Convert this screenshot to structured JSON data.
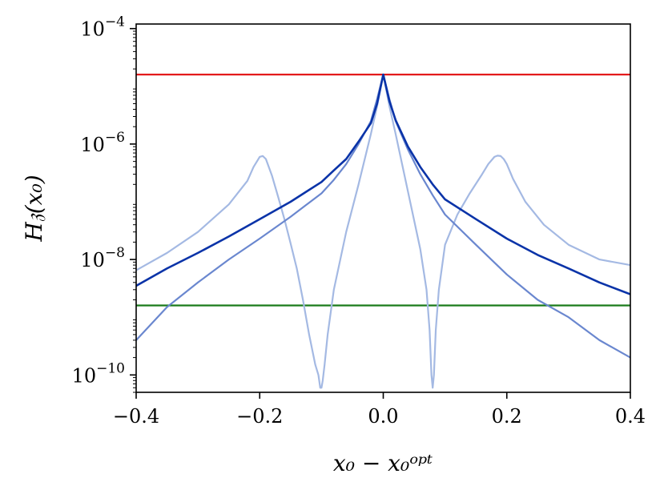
{
  "chart_data": {
    "type": "line",
    "xlabel": "x₀ − x₀ᵒᵖᵗ",
    "ylabel": "H𝔷(x₀)",
    "xlim": [
      -0.4,
      0.4
    ],
    "ylim": [
      5e-11,
      0.00012
    ],
    "yscale": "log",
    "grid": false,
    "x_ticks": [
      -0.4,
      -0.2,
      0.0,
      0.2,
      0.4
    ],
    "x_tick_labels": [
      "−0.4",
      "−0.2",
      "0.0",
      "0.2",
      "0.4"
    ],
    "y_ticks": [
      0.0001,
      1e-06,
      1e-08,
      1e-10
    ],
    "y_tick_labels": [
      {
        "base": "10",
        "exp": "−4"
      },
      {
        "base": "10",
        "exp": "−6"
      },
      {
        "base": "10",
        "exp": "−8"
      },
      {
        "base": "10",
        "exp": "−10"
      }
    ],
    "series": [
      {
        "color": "#e31a1c",
        "width": 2.2,
        "opacity": 1,
        "x": [
          -0.4,
          0.4
        ],
        "y": [
          1.6e-05,
          1.6e-05
        ]
      },
      {
        "color": "#1a7a1a",
        "width": 2.2,
        "opacity": 1,
        "x": [
          -0.4,
          0.4
        ],
        "y": [
          1.6e-09,
          1.6e-09
        ]
      },
      {
        "color": "#a4b9e3",
        "width": 2.2,
        "opacity": 1,
        "x": [
          -0.4,
          -0.35,
          -0.3,
          -0.25,
          -0.22,
          -0.21,
          -0.2,
          -0.195,
          -0.19,
          -0.18,
          -0.17,
          -0.16,
          -0.15,
          -0.14,
          -0.13,
          -0.12,
          -0.11,
          -0.105,
          -0.102,
          -0.1,
          -0.098,
          -0.095,
          -0.09,
          -0.08,
          -0.06,
          -0.04,
          -0.02,
          -0.01,
          0.0,
          0.01,
          0.02,
          0.04,
          0.06,
          0.07,
          0.075,
          0.078,
          0.08,
          0.082,
          0.085,
          0.09,
          0.1,
          0.12,
          0.14,
          0.16,
          0.17,
          0.18,
          0.185,
          0.19,
          0.195,
          0.2,
          0.21,
          0.23,
          0.26,
          0.3,
          0.35,
          0.4
        ],
        "y": [
          6.5e-09,
          1.3e-08,
          3e-08,
          9e-08,
          2.3e-07,
          4e-07,
          6e-07,
          6.2e-07,
          5.5e-07,
          2.8e-07,
          1.2e-07,
          5e-08,
          1.9e-08,
          7e-09,
          2e-09,
          5e-10,
          1.5e-10,
          1e-10,
          6e-11,
          6e-11,
          8e-11,
          1.5e-10,
          5e-10,
          3e-09,
          3e-08,
          2e-07,
          1.5e-06,
          4.5e-06,
          1.6e-05,
          4.5e-06,
          1.5e-06,
          1.5e-07,
          1.5e-08,
          3e-09,
          6e-10,
          1e-10,
          6e-11,
          1e-10,
          6e-10,
          3e-09,
          1.8e-08,
          6e-08,
          1.4e-07,
          3e-07,
          4.5e-07,
          6e-07,
          6.3e-07,
          6.2e-07,
          5.5e-07,
          4.5e-07,
          2.5e-07,
          1e-07,
          4e-08,
          1.8e-08,
          1e-08,
          8e-09
        ]
      },
      {
        "color": "#6a87cf",
        "width": 2.2,
        "opacity": 1,
        "x": [
          -0.4,
          -0.35,
          -0.3,
          -0.25,
          -0.2,
          -0.15,
          -0.1,
          -0.08,
          -0.06,
          -0.04,
          -0.02,
          -0.01,
          0.0,
          0.01,
          0.02,
          0.04,
          0.06,
          0.08,
          0.1,
          0.15,
          0.2,
          0.25,
          0.3,
          0.35,
          0.4
        ],
        "y": [
          4e-10,
          1.5e-09,
          4e-09,
          1e-08,
          2.3e-08,
          5.5e-08,
          1.4e-07,
          2.4e-07,
          4.5e-07,
          1e-06,
          2.5e-06,
          6e-06,
          1.6e-05,
          6e-06,
          2.5e-06,
          8e-07,
          3e-07,
          1.3e-07,
          6e-08,
          1.8e-08,
          5.5e-09,
          2e-09,
          1e-09,
          4e-10,
          2e-10
        ]
      },
      {
        "color": "#0a33a8",
        "width": 2.6,
        "opacity": 1,
        "x": [
          -0.4,
          -0.35,
          -0.3,
          -0.25,
          -0.2,
          -0.15,
          -0.1,
          -0.08,
          -0.06,
          -0.04,
          -0.02,
          -0.01,
          0.0,
          0.01,
          0.02,
          0.04,
          0.06,
          0.08,
          0.1,
          0.15,
          0.2,
          0.25,
          0.3,
          0.35,
          0.4
        ],
        "y": [
          3.5e-09,
          7e-09,
          1.3e-08,
          2.5e-08,
          5e-08,
          1e-07,
          2.2e-07,
          3.5e-07,
          5.5e-07,
          1.1e-06,
          2.3e-06,
          5e-06,
          1.6e-05,
          5.5e-06,
          2.6e-06,
          9e-07,
          4e-07,
          2e-07,
          1.1e-07,
          5e-08,
          2.3e-08,
          1.2e-08,
          7e-09,
          4e-09,
          2.5e-09
        ]
      }
    ]
  }
}
